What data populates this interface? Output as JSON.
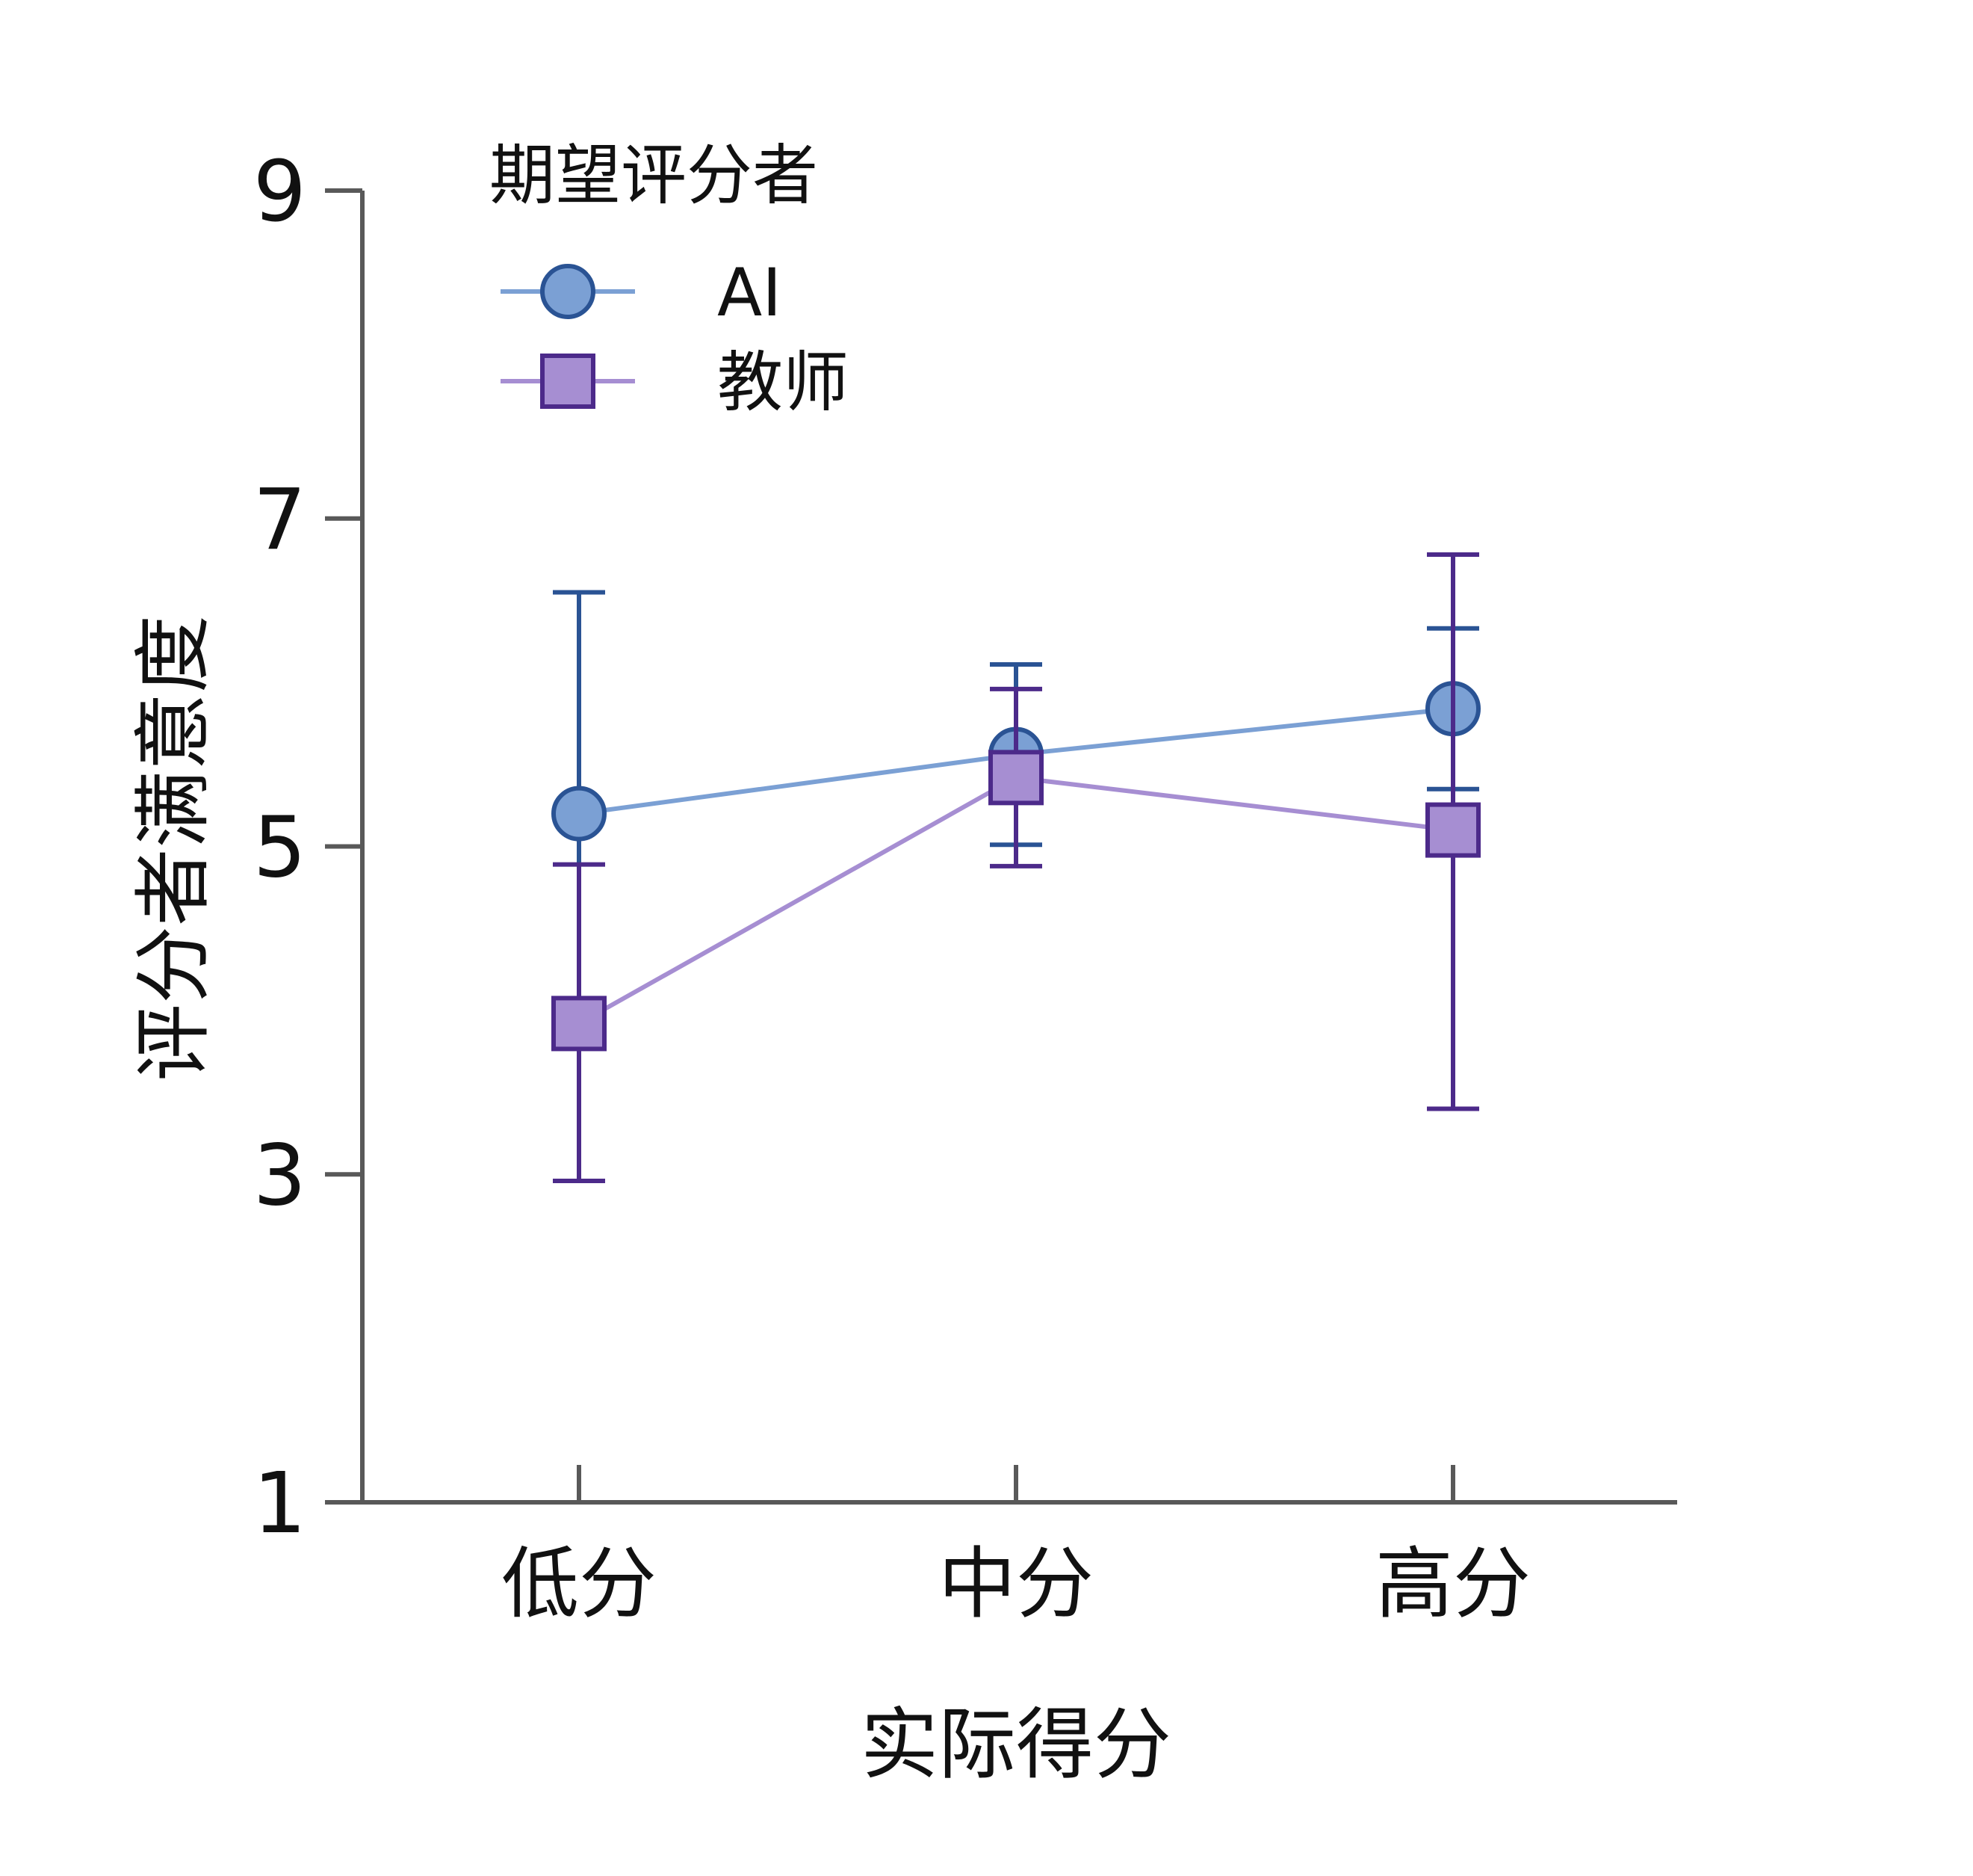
{
  "chart_data": {
    "type": "line",
    "xlabel": "实际得分",
    "ylabel": "评分者满意度",
    "categories": [
      "低分",
      "中分",
      "高分"
    ],
    "ylim": [
      1,
      9
    ],
    "yticks": [
      1,
      3,
      5,
      7,
      9
    ],
    "error_bars": true,
    "grid": false,
    "legend": {
      "title": "期望评分者",
      "placement": "top-left"
    },
    "series": [
      {
        "name": "AI",
        "marker": "circle",
        "line_color": "#7ba0d4",
        "marker_fill": "#7ba0d4",
        "marker_edge": "#2a5394",
        "errorbar_color": "#2a5394",
        "values": [
          5.2,
          5.56,
          5.84
        ],
        "err_low": [
          3.85,
          5.01,
          5.35
        ],
        "err_high": [
          6.55,
          6.11,
          6.33
        ]
      },
      {
        "name": "教师",
        "marker": "square",
        "line_color": "#a68ed2",
        "marker_fill": "#a68ed2",
        "marker_edge": "#4c2a8a",
        "errorbar_color": "#4c2a8a",
        "values": [
          3.92,
          5.42,
          5.1
        ],
        "err_low": [
          2.96,
          4.88,
          3.4
        ],
        "err_high": [
          4.89,
          5.96,
          6.78
        ]
      }
    ],
    "axis_color": "#595959"
  }
}
